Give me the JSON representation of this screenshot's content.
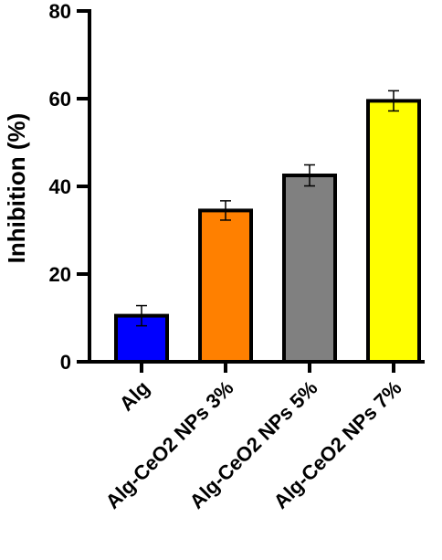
{
  "chart_data": {
    "type": "bar",
    "title": "",
    "xlabel": "",
    "ylabel": "Inhibition (%)",
    "ylim": [
      0,
      80
    ],
    "yticks": [
      "0",
      "20",
      "40",
      "60",
      "80"
    ],
    "categories": [
      "Alg",
      "Alg-CeO2 NPs 3%",
      "Alg-CeO2 NPs 5%",
      "Alg-CeO2 NPs 7%"
    ],
    "values": [
      10.5,
      34.5,
      42.5,
      59.5
    ],
    "errors": [
      2.3,
      2.2,
      2.4,
      2.3
    ],
    "colors": [
      "#0000ff",
      "#ff8000",
      "#808080",
      "#ffff00"
    ],
    "grid": false,
    "legend": "none"
  }
}
